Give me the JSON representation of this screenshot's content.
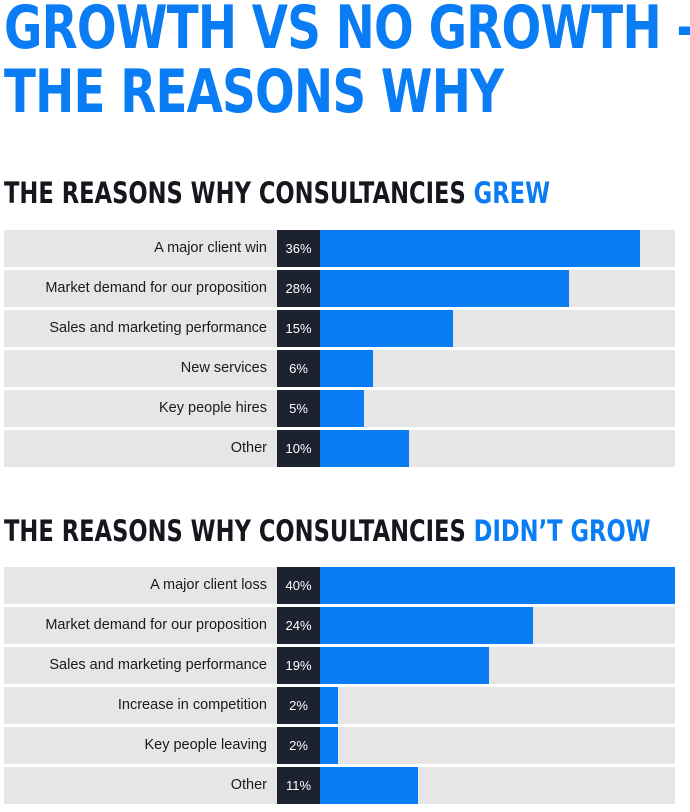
{
  "title": {
    "line1": "GROWTH VS NO GROWTH -",
    "line2": "THE REASONS WHY"
  },
  "colors": {
    "accent": "#0a7df5",
    "dark": "#1c2230",
    "track": "#e6e6e6",
    "text": "#16161e"
  },
  "chart_data": [
    {
      "type": "bar",
      "orientation": "horizontal",
      "title": "THE REASONS WHY CONSULTANCIES",
      "title_accent": "GREW",
      "categories": [
        "A major client win",
        "Market demand for our proposition",
        "Sales and marketing performance",
        "New services",
        "Key people hires",
        "Other"
      ],
      "values": [
        36,
        28,
        15,
        6,
        5,
        10
      ],
      "value_labels": [
        "36%",
        "28%",
        "15%",
        "6%",
        "5%",
        "10%"
      ],
      "xlim": [
        0,
        40
      ]
    },
    {
      "type": "bar",
      "orientation": "horizontal",
      "title": "THE REASONS WHY CONSULTANCIES",
      "title_accent": "DIDN’T GROW",
      "categories": [
        "A major client loss",
        "Market demand for our proposition",
        "Sales and marketing performance",
        "Increase in competition",
        "Key people leaving",
        "Other"
      ],
      "values": [
        40,
        24,
        19,
        2,
        2,
        11
      ],
      "value_labels": [
        "40%",
        "24%",
        "19%",
        "2%",
        "2%",
        "11%"
      ],
      "xlim": [
        0,
        40
      ]
    }
  ]
}
